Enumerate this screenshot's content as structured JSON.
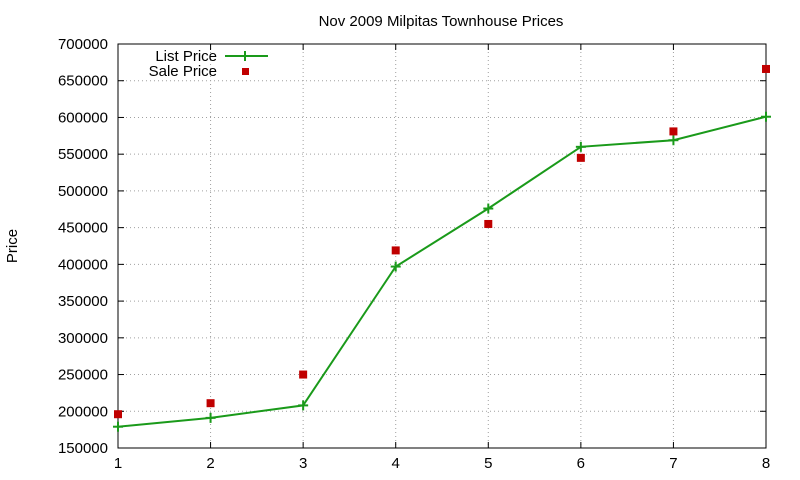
{
  "chart_data": {
    "type": "line",
    "title": "Nov 2009 Milpitas Townhouse Prices",
    "xlabel": "",
    "ylabel": "Price",
    "x": [
      1,
      2,
      3,
      4,
      5,
      6,
      7,
      8
    ],
    "xlim": [
      1,
      8
    ],
    "ylim": [
      150000,
      700000
    ],
    "xticks": [
      "1",
      "2",
      "3",
      "4",
      "5",
      "6",
      "7",
      "8"
    ],
    "yticks": [
      "150000",
      "200000",
      "250000",
      "300000",
      "350000",
      "400000",
      "450000",
      "500000",
      "550000",
      "600000",
      "650000",
      "700000"
    ],
    "grid": true,
    "legend_position": "top-left",
    "series": [
      {
        "name": "List Price",
        "style": "line+cross",
        "color": "#1a9a1a",
        "values": [
          179000,
          191000,
          208000,
          397000,
          476000,
          560000,
          569000,
          601000
        ]
      },
      {
        "name": "Sale Price",
        "style": "square",
        "color": "#c00000",
        "values": [
          196000,
          211000,
          250000,
          419000,
          455000,
          545000,
          581000,
          666000
        ]
      }
    ]
  }
}
